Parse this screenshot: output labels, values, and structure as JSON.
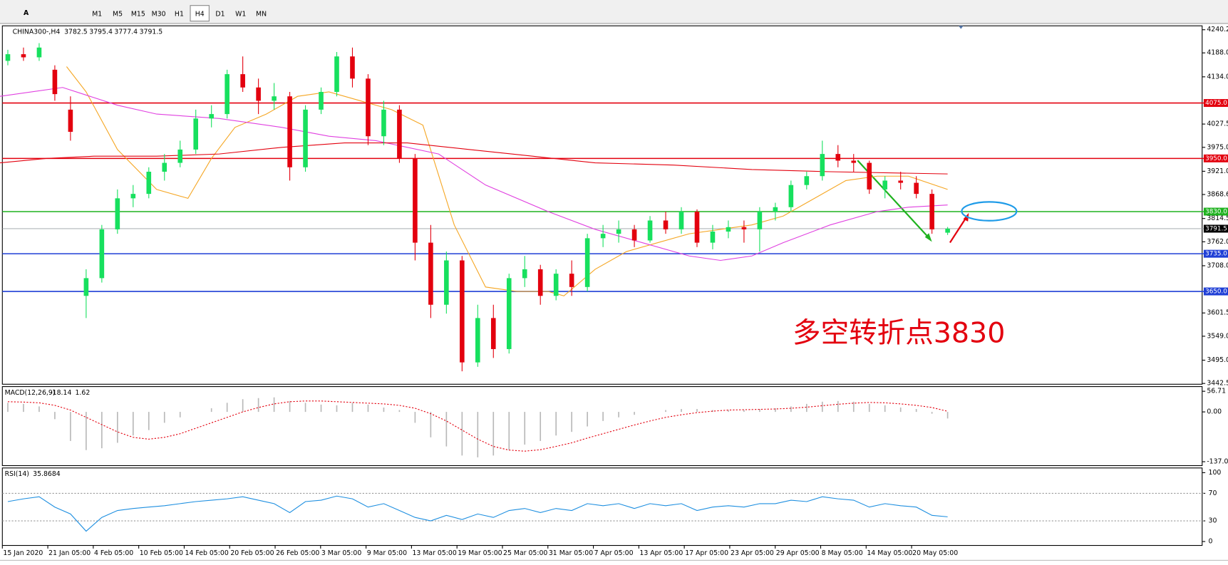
{
  "toolbar": {
    "tools": [
      "A"
    ],
    "timeframes": [
      "M1",
      "M5",
      "M15",
      "M30",
      "H1",
      "H4",
      "D1",
      "W1",
      "MN"
    ],
    "active": "H4"
  },
  "chart_data": {
    "type": "candlestick",
    "symbol": "CHINA300-,H4",
    "ohlc": [
      3782.5,
      3795.4,
      3777.4,
      3791.5
    ],
    "up_color": "#17e05e",
    "down_color": "#e3000e",
    "ylim": [
      3442.5,
      4240.2
    ],
    "yticks": [
      4240.2,
      {
        "value": 4188.0,
        "label": "4188.0"
      },
      {
        "value": 4134.0,
        "label": "4134.0"
      },
      4027.5,
      {
        "value": 3975.0,
        "label": "3975.0"
      },
      {
        "value": 3921.0,
        "label": "3921.0"
      },
      3868.6,
      3814.5,
      {
        "value": 3762.0,
        "label": "3762.0"
      },
      {
        "value": 3708.0,
        "label": "3708.0"
      },
      3601.5,
      {
        "value": 3549.0,
        "label": "3549.0"
      },
      {
        "value": 3495.0,
        "label": "3495.0"
      },
      3442.5
    ],
    "levels": [
      {
        "value": 4075,
        "label": "4075.0",
        "color": "#e3000e"
      },
      {
        "value": 3950,
        "label": "3950.0",
        "color": "#e3000e"
      },
      {
        "value": 3830,
        "label": "3830.0",
        "color": "#1fb21f"
      },
      {
        "value": 3791.5,
        "color": "#9aa0a6"
      },
      {
        "value": 3735,
        "label": "3735.0",
        "color": "#1f3fd6"
      },
      {
        "value": 3650,
        "label": "3650.0",
        "color": "#1f3fd6"
      }
    ],
    "candles": [
      [
        4170,
        4195,
        4160,
        4185
      ],
      [
        4185,
        4200,
        4170,
        4178
      ],
      [
        4178,
        4210,
        4170,
        4200
      ],
      [
        4150,
        4160,
        4080,
        4095
      ],
      [
        4060,
        4090,
        3990,
        4010
      ],
      [
        3640,
        3700,
        3590,
        3680
      ],
      [
        3680,
        3800,
        3670,
        3790
      ],
      [
        3790,
        3880,
        3780,
        3860
      ],
      [
        3860,
        3890,
        3840,
        3870
      ],
      [
        3870,
        3930,
        3860,
        3920
      ],
      [
        3920,
        3960,
        3900,
        3940
      ],
      [
        3940,
        3990,
        3930,
        3970
      ],
      [
        3970,
        4060,
        3960,
        4040
      ],
      [
        4040,
        4070,
        4020,
        4050
      ],
      [
        4050,
        4150,
        4040,
        4140
      ],
      [
        4140,
        4180,
        4100,
        4110
      ],
      [
        4110,
        4130,
        4050,
        4080
      ],
      [
        4080,
        4120,
        4060,
        4090
      ],
      [
        4090,
        4100,
        3900,
        3930
      ],
      [
        3930,
        4070,
        3920,
        4060
      ],
      [
        4060,
        4110,
        4050,
        4100
      ],
      [
        4100,
        4190,
        4090,
        4180
      ],
      [
        4180,
        4200,
        4110,
        4130
      ],
      [
        4130,
        4140,
        3980,
        4000
      ],
      [
        4000,
        4080,
        3980,
        4060
      ],
      [
        4060,
        4070,
        3940,
        3950
      ],
      [
        3950,
        3960,
        3720,
        3760
      ],
      [
        3760,
        3800,
        3590,
        3620
      ],
      [
        3620,
        3740,
        3600,
        3720
      ],
      [
        3720,
        3730,
        3470,
        3490
      ],
      [
        3490,
        3620,
        3480,
        3590
      ],
      [
        3590,
        3620,
        3500,
        3520
      ],
      [
        3520,
        3690,
        3510,
        3680
      ],
      [
        3680,
        3730,
        3660,
        3700
      ],
      [
        3700,
        3710,
        3620,
        3640
      ],
      [
        3640,
        3700,
        3630,
        3690
      ],
      [
        3690,
        3720,
        3640,
        3660
      ],
      [
        3660,
        3780,
        3650,
        3770
      ],
      [
        3770,
        3800,
        3750,
        3780
      ],
      [
        3780,
        3810,
        3760,
        3790
      ],
      [
        3790,
        3800,
        3750,
        3765
      ],
      [
        3765,
        3820,
        3760,
        3810
      ],
      [
        3810,
        3830,
        3780,
        3790
      ],
      [
        3790,
        3840,
        3780,
        3830
      ],
      [
        3830,
        3835,
        3750,
        3760
      ],
      [
        3760,
        3800,
        3745,
        3785
      ],
      [
        3785,
        3810,
        3770,
        3795
      ],
      [
        3795,
        3810,
        3760,
        3790
      ],
      [
        3790,
        3840,
        3740,
        3830
      ],
      [
        3830,
        3850,
        3810,
        3840
      ],
      [
        3840,
        3900,
        3830,
        3890
      ],
      [
        3890,
        3920,
        3880,
        3910
      ],
      [
        3910,
        3990,
        3900,
        3960
      ],
      [
        3960,
        3980,
        3930,
        3945
      ],
      [
        3945,
        3960,
        3920,
        3940
      ],
      [
        3940,
        3945,
        3870,
        3880
      ],
      [
        3880,
        3910,
        3860,
        3900
      ],
      [
        3900,
        3920,
        3880,
        3895
      ],
      [
        3895,
        3910,
        3860,
        3870
      ],
      [
        3870,
        3880,
        3780,
        3790
      ],
      [
        3782.5,
        3795.4,
        3777.4,
        3791.5
      ]
    ],
    "ma_lines": [
      {
        "color": "#f5a623",
        "x": [
          3.75,
          5,
          7,
          9.5,
          11.5,
          13,
          14.5,
          16.5,
          18.5,
          20.5,
          22.5,
          24.5,
          26.5,
          28.5,
          30.5,
          32.5,
          34.5,
          35.5,
          37.5,
          39.5,
          41.5,
          43.5,
          45.5,
          47.5,
          49.5,
          51.5,
          53.5,
          55.5,
          57.5,
          60
        ],
        "values": [
          4157,
          4100,
          3970,
          3880,
          3860,
          3950,
          4020,
          4050,
          4090,
          4100,
          4080,
          4060,
          4025,
          3800,
          3660,
          3650,
          3650,
          3640,
          3700,
          3740,
          3760,
          3780,
          3790,
          3800,
          3820,
          3860,
          3900,
          3910,
          3910,
          3880
        ]
      },
      {
        "color": "#e040e0",
        "x": [
          -0.5,
          3.5,
          7,
          9.5,
          13.5,
          17.5,
          20.5,
          23.5,
          27.5,
          30.5,
          34.5,
          37.5,
          40.5,
          43.5,
          45.5,
          47.5,
          49.5,
          52.5,
          55.5,
          57.5,
          60
        ],
        "values": [
          4090,
          4110,
          4070,
          4050,
          4040,
          4020,
          4000,
          3990,
          3960,
          3890,
          3830,
          3790,
          3760,
          3730,
          3720,
          3730,
          3760,
          3800,
          3830,
          3840,
          3845
        ]
      },
      {
        "color": "#e3000e",
        "x": [
          -0.5,
          2.5,
          5.5,
          9.5,
          13.5,
          17.5,
          21.5,
          25.5,
          29.5,
          33.5,
          37.5,
          42.5,
          47.5,
          52.5,
          60
        ],
        "values": [
          3940,
          3950,
          3955,
          3955,
          3960,
          3975,
          3985,
          3985,
          3970,
          3955,
          3940,
          3935,
          3925,
          3920,
          3915
        ]
      }
    ],
    "annotation": "多空转折点3830",
    "x_labels": [
      "15 Jan 2020",
      "21 Jan 05:00",
      "4 Feb 05:00",
      "10 Feb 05:00",
      "14 Feb 05:00",
      "20 Feb 05:00",
      "26 Feb 05:00",
      "3 Mar 05:00",
      "9 Mar 05:00",
      "13 Mar 05:00",
      "19 Mar 05:00",
      "25 Mar 05:00",
      "31 Mar 05:00",
      "7 Apr 05:00",
      "13 Apr 05:00",
      "17 Apr 05:00",
      "23 Apr 05:00",
      "29 Apr 05:00",
      "8 May 05:00",
      "14 May 05:00",
      "20 May 05:00"
    ],
    "macd": {
      "label": "MACD(12,26,9)",
      "current": [
        -18.14,
        1.62
      ],
      "ylim": [
        -137.01,
        56.71
      ],
      "yticks": [
        56.71,
        {
          "value": 0,
          "label": "0.00"
        },
        -137.01
      ],
      "hist_color": "#b8b8b8",
      "signal_color": "#e3000e",
      "values": [
        25,
        22,
        15,
        -20,
        -80,
        -105,
        -100,
        -85,
        -65,
        -50,
        -30,
        -15,
        0,
        10,
        25,
        35,
        38,
        40,
        30,
        25,
        20,
        18,
        25,
        20,
        12,
        5,
        -30,
        -70,
        -95,
        -120,
        -125,
        -120,
        -105,
        -90,
        -80,
        -65,
        -55,
        -40,
        -25,
        -15,
        -8,
        0,
        5,
        8,
        8,
        5,
        5,
        5,
        8,
        10,
        15,
        22,
        28,
        30,
        28,
        22,
        18,
        12,
        8,
        -5,
        -18.14
      ],
      "signal": [
        28,
        27,
        25,
        18,
        5,
        -15,
        -35,
        -55,
        -70,
        -75,
        -70,
        -60,
        -45,
        -30,
        -15,
        0,
        12,
        22,
        28,
        30,
        30,
        28,
        26,
        24,
        22,
        18,
        10,
        -5,
        -25,
        -50,
        -75,
        -95,
        -105,
        -108,
        -104,
        -95,
        -85,
        -72,
        -60,
        -48,
        -36,
        -25,
        -15,
        -8,
        -2,
        2,
        5,
        6,
        7,
        8,
        10,
        13,
        17,
        21,
        24,
        26,
        25,
        22,
        18,
        12,
        1.62
      ]
    },
    "rsi": {
      "label": "RSI(14)",
      "current": 35.8684,
      "ylim": [
        0,
        100
      ],
      "yticks": [
        100,
        70,
        30,
        0
      ],
      "color": "#1e8fe0",
      "values": [
        58,
        62,
        65,
        50,
        40,
        15,
        35,
        45,
        48,
        50,
        52,
        55,
        58,
        60,
        62,
        65,
        60,
        55,
        42,
        58,
        60,
        66,
        62,
        50,
        55,
        45,
        35,
        30,
        38,
        32,
        40,
        35,
        45,
        48,
        42,
        48,
        45,
        55,
        52,
        55,
        48,
        55,
        52,
        55,
        45,
        50,
        52,
        50,
        55,
        55,
        60,
        58,
        65,
        62,
        60,
        50,
        55,
        52,
        50,
        38,
        35.8684
      ]
    }
  }
}
